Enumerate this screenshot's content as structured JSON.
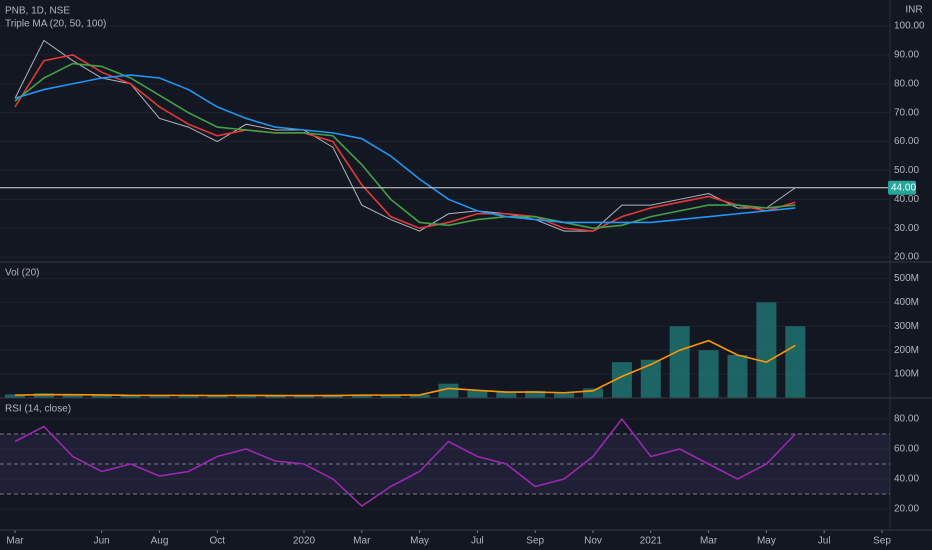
{
  "chart_data": [
    {
      "type": "line",
      "title": "PNB, 1D, NSE",
      "subtitle": "Triple MA (20, 50, 100)",
      "unit": "INR",
      "x": [
        "2019-03",
        "2019-04",
        "2019-05",
        "2019-06",
        "2019-07",
        "2019-08",
        "2019-09",
        "2019-10",
        "2019-11",
        "2019-12",
        "2020-01",
        "2020-02",
        "2020-03",
        "2020-04",
        "2020-05",
        "2020-06",
        "2020-07",
        "2020-08",
        "2020-09",
        "2020-10",
        "2020-11",
        "2020-12",
        "2021-01",
        "2021-02",
        "2021-03",
        "2021-04",
        "2021-05",
        "2021-06"
      ],
      "series": [
        {
          "color": "#b2b5be",
          "values": [
            75,
            95,
            88,
            82,
            80,
            68,
            65,
            60,
            66,
            64,
            64,
            58,
            38,
            33,
            29,
            35,
            36,
            35,
            33,
            29,
            29,
            38,
            38,
            40,
            42,
            37,
            37,
            44
          ]
        },
        {
          "color": "#e53935",
          "values": [
            72,
            88,
            90,
            84,
            80,
            72,
            66,
            62,
            64,
            63,
            63,
            60,
            45,
            34,
            30,
            32,
            35,
            35,
            34,
            30,
            29,
            34,
            37,
            39,
            41,
            38,
            36,
            39
          ]
        },
        {
          "color": "#43a047",
          "values": [
            74,
            82,
            87,
            86,
            82,
            76,
            70,
            65,
            64,
            63,
            63,
            62,
            52,
            40,
            32,
            31,
            33,
            34,
            34,
            32,
            30,
            31,
            34,
            36,
            38,
            38,
            37,
            38
          ]
        },
        {
          "color": "#2196f3",
          "values": [
            75,
            78,
            80,
            82,
            83,
            82,
            78,
            72,
            68,
            65,
            64,
            63,
            61,
            55,
            47,
            40,
            36,
            34,
            33,
            32,
            32,
            32,
            32,
            33,
            34,
            35,
            36,
            37
          ]
        }
      ],
      "price_label": {
        "value": 44,
        "label": "44.00"
      },
      "ylim": [
        18.3,
        109
      ],
      "yticks": [
        {
          "value": 20,
          "label": "20.00"
        },
        {
          "value": 30,
          "label": "30.00"
        },
        {
          "value": 40,
          "label": "40.00"
        },
        {
          "value": 50,
          "label": "50.00"
        },
        {
          "value": 60,
          "label": "60.00"
        },
        {
          "value": 70,
          "label": "70.00"
        },
        {
          "value": 80,
          "label": "80.00"
        },
        {
          "value": 90,
          "label": "90.00"
        },
        {
          "value": 100,
          "label": "100.00"
        }
      ],
      "grid": true
    },
    {
      "type": "bar",
      "title": "Vol (20)",
      "x": [
        "2019-03",
        "2019-04",
        "2019-05",
        "2019-06",
        "2019-07",
        "2019-08",
        "2019-09",
        "2019-10",
        "2019-11",
        "2019-12",
        "2020-01",
        "2020-02",
        "2020-03",
        "2020-04",
        "2020-05",
        "2020-06",
        "2020-07",
        "2020-08",
        "2020-09",
        "2020-10",
        "2020-11",
        "2020-12",
        "2021-01",
        "2021-02",
        "2021-03",
        "2021-04",
        "2021-05",
        "2021-06"
      ],
      "series": [
        {
          "type": "bar",
          "color": "#26a69a",
          "values": [
            15,
            20,
            14,
            12,
            10,
            12,
            11,
            10,
            12,
            9,
            10,
            10,
            15,
            12,
            14,
            60,
            30,
            25,
            30,
            20,
            40,
            150,
            160,
            300,
            200,
            180,
            400,
            300
          ]
        },
        {
          "type": "line",
          "color": "#ff9800",
          "values": [
            12,
            14,
            14,
            13,
            11,
            11,
            11,
            10,
            11,
            10,
            10,
            10,
            12,
            12,
            13,
            40,
            32,
            25,
            25,
            22,
            30,
            90,
            140,
            200,
            240,
            180,
            150,
            220
          ]
        }
      ],
      "ylim": [
        0,
        569
      ],
      "yticks": [
        {
          "value": 100,
          "label": "100M"
        },
        {
          "value": 200,
          "label": "200M"
        },
        {
          "value": 300,
          "label": "300M"
        },
        {
          "value": 400,
          "label": "400M"
        },
        {
          "value": 500,
          "label": "500M"
        }
      ],
      "grid": true
    },
    {
      "type": "line",
      "title": "RSI (14, close)",
      "x": [
        "2019-03",
        "2019-04",
        "2019-05",
        "2019-06",
        "2019-07",
        "2019-08",
        "2019-09",
        "2019-10",
        "2019-11",
        "2019-12",
        "2020-01",
        "2020-02",
        "2020-03",
        "2020-04",
        "2020-05",
        "2020-06",
        "2020-07",
        "2020-08",
        "2020-09",
        "2020-10",
        "2020-11",
        "2020-12",
        "2021-01",
        "2021-02",
        "2021-03",
        "2021-04",
        "2021-05",
        "2021-06"
      ],
      "series": [
        {
          "color": "#9c27b0",
          "values": [
            65,
            75,
            55,
            45,
            50,
            42,
            45,
            55,
            60,
            52,
            50,
            40,
            22,
            35,
            45,
            65,
            55,
            50,
            35,
            40,
            55,
            80,
            55,
            60,
            50,
            40,
            50,
            70
          ]
        }
      ],
      "levels": [
        30,
        50,
        70
      ],
      "ylim": [
        6,
        94
      ],
      "yticks": [
        {
          "value": 20,
          "label": "20.00"
        },
        {
          "value": 40,
          "label": "40.00"
        },
        {
          "value": 60,
          "label": "60.00"
        },
        {
          "value": 80,
          "label": "80.00"
        }
      ],
      "xticks": [
        {
          "value": "2019-03",
          "label": "Mar"
        },
        {
          "value": "2019-06",
          "label": "Jun"
        },
        {
          "value": "2019-08",
          "label": "Aug"
        },
        {
          "value": "2019-10",
          "label": "Oct"
        },
        {
          "value": "2020-01",
          "label": "2020"
        },
        {
          "value": "2020-03",
          "label": "Mar"
        },
        {
          "value": "2020-05",
          "label": "May"
        },
        {
          "value": "2020-07",
          "label": "Jul"
        },
        {
          "value": "2020-09",
          "label": "Sep"
        },
        {
          "value": "2020-11",
          "label": "Nov"
        },
        {
          "value": "2021-01",
          "label": "2021"
        },
        {
          "value": "2021-03",
          "label": "Mar"
        },
        {
          "value": "2021-05",
          "label": "May"
        },
        {
          "value": "2021-07",
          "label": "Jul"
        },
        {
          "value": "2021-09",
          "label": "Sep"
        }
      ],
      "grid": true
    }
  ]
}
